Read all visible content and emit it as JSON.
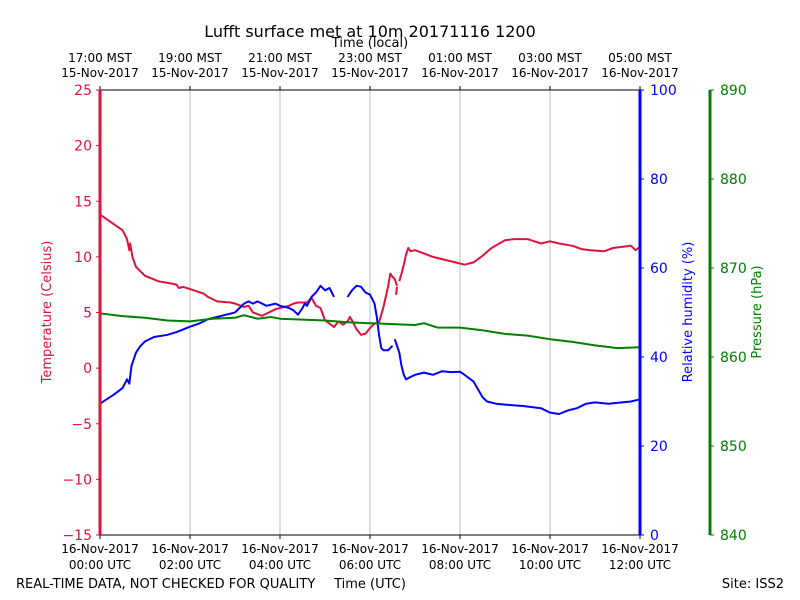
{
  "chart_data": {
    "type": "line",
    "title": "Lufft surface met at 10m 20171116 1200",
    "top_xlabel": "Time (local)",
    "xlabel": "Time (UTC)",
    "xlim": [
      0,
      12
    ],
    "x_ticks": [
      {
        "x": 0,
        "utc_date": "16-Nov-2017",
        "utc_time": "00:00 UTC",
        "local_time": "17:00 MST",
        "local_date": "15-Nov-2017"
      },
      {
        "x": 2,
        "utc_date": "16-Nov-2017",
        "utc_time": "02:00 UTC",
        "local_time": "19:00 MST",
        "local_date": "15-Nov-2017"
      },
      {
        "x": 4,
        "utc_date": "16-Nov-2017",
        "utc_time": "04:00 UTC",
        "local_time": "21:00 MST",
        "local_date": "15-Nov-2017"
      },
      {
        "x": 6,
        "utc_date": "16-Nov-2017",
        "utc_time": "06:00 UTC",
        "local_time": "23:00 MST",
        "local_date": "15-Nov-2017"
      },
      {
        "x": 8,
        "utc_date": "16-Nov-2017",
        "utc_time": "08:00 UTC",
        "local_time": "01:00 MST",
        "local_date": "16-Nov-2017"
      },
      {
        "x": 10,
        "utc_date": "16-Nov-2017",
        "utc_time": "10:00 UTC",
        "local_time": "03:00 MST",
        "local_date": "16-Nov-2017"
      },
      {
        "x": 12,
        "utc_date": "16-Nov-2017",
        "utc_time": "12:00 UTC",
        "local_time": "05:00 MST",
        "local_date": "16-Nov-2017"
      }
    ],
    "axes": {
      "temperature": {
        "label": "Temperature (Celsius)",
        "range": [
          -15,
          25
        ],
        "ticks": [
          25,
          20,
          15,
          10,
          5,
          0,
          -5,
          -10,
          -15
        ],
        "tick_labels": [
          "25",
          "20",
          "15",
          "10",
          "5",
          "0",
          "−5",
          "−10",
          "−15"
        ],
        "color": "#dc143c"
      },
      "humidity": {
        "label": "Relative humidity (%)",
        "range": [
          0,
          100
        ],
        "ticks": [
          0,
          20,
          40,
          60,
          80,
          100
        ],
        "tick_labels": [
          "0",
          "20",
          "40",
          "60",
          "80",
          "100"
        ],
        "color": "#0000ff"
      },
      "pressure": {
        "label": "Pressure (hPa)",
        "range": [
          840,
          890
        ],
        "ticks": [
          840,
          850,
          860,
          870,
          880,
          890
        ],
        "tick_labels": [
          "840",
          "850",
          "860",
          "870",
          "880",
          "890"
        ],
        "color": "#008000"
      }
    },
    "series": [
      {
        "name": "Temperature",
        "axis": "temperature",
        "color": "#dc143c",
        "segments": [
          [
            [
              0,
              13.8
            ],
            [
              0.25,
              13.1
            ],
            [
              0.5,
              12.4
            ],
            [
              0.6,
              11.6
            ],
            [
              0.65,
              10.6
            ],
            [
              0.67,
              11.2
            ],
            [
              0.72,
              10.0
            ],
            [
              0.8,
              9.1
            ],
            [
              1.0,
              8.3
            ],
            [
              1.3,
              7.8
            ],
            [
              1.6,
              7.6
            ],
            [
              1.7,
              7.5
            ],
            [
              1.75,
              7.2
            ],
            [
              1.85,
              7.3
            ],
            [
              2.0,
              7.1
            ],
            [
              2.3,
              6.7
            ],
            [
              2.4,
              6.4
            ],
            [
              2.6,
              6.0
            ],
            [
              2.9,
              5.9
            ],
            [
              3.0,
              5.8
            ],
            [
              3.2,
              5.5
            ],
            [
              3.3,
              5.6
            ],
            [
              3.4,
              5.0
            ],
            [
              3.6,
              4.7
            ],
            [
              3.7,
              4.9
            ],
            [
              3.9,
              5.3
            ],
            [
              4.1,
              5.5
            ],
            [
              4.2,
              5.6
            ],
            [
              4.3,
              5.8
            ],
            [
              4.4,
              5.9
            ],
            [
              4.6,
              5.9
            ],
            [
              4.7,
              6.3
            ],
            [
              4.8,
              5.6
            ],
            [
              4.9,
              5.4
            ],
            [
              5.0,
              4.3
            ],
            [
              5.1,
              4.0
            ],
            [
              5.2,
              3.7
            ],
            [
              5.3,
              4.2
            ],
            [
              5.4,
              3.9
            ],
            [
              5.5,
              4.2
            ],
            [
              5.55,
              4.6
            ],
            [
              5.6,
              4.3
            ],
            [
              5.7,
              3.5
            ],
            [
              5.8,
              3.0
            ],
            [
              5.9,
              3.1
            ],
            [
              6.0,
              3.6
            ],
            [
              6.1,
              4.0
            ],
            [
              6.2,
              4.1
            ],
            [
              6.3,
              5.5
            ],
            [
              6.4,
              7.3
            ],
            [
              6.45,
              8.5
            ],
            [
              6.5,
              8.2
            ],
            [
              6.55,
              8.0
            ],
            [
              6.6,
              7.4
            ]
          ],
          [
            [
              6.58,
              6.6
            ],
            [
              6.6,
              7.3
            ]
          ],
          [
            [
              6.65,
              7.8
            ],
            [
              6.7,
              8.5
            ],
            [
              6.75,
              9.3
            ],
            [
              6.8,
              10.2
            ],
            [
              6.85,
              10.8
            ],
            [
              6.9,
              10.5
            ],
            [
              7.0,
              10.6
            ],
            [
              7.2,
              10.3
            ],
            [
              7.4,
              10.0
            ],
            [
              7.6,
              9.8
            ],
            [
              7.9,
              9.5
            ],
            [
              8.1,
              9.3
            ],
            [
              8.3,
              9.5
            ],
            [
              8.5,
              10.1
            ],
            [
              8.7,
              10.8
            ],
            [
              9.0,
              11.5
            ],
            [
              9.2,
              11.6
            ],
            [
              9.5,
              11.6
            ],
            [
              9.8,
              11.2
            ],
            [
              10.0,
              11.4
            ],
            [
              10.2,
              11.2
            ],
            [
              10.5,
              11.0
            ],
            [
              10.7,
              10.7
            ],
            [
              10.9,
              10.6
            ],
            [
              11.2,
              10.5
            ],
            [
              11.4,
              10.8
            ],
            [
              11.6,
              10.9
            ],
            [
              11.8,
              11.0
            ],
            [
              11.9,
              10.6
            ],
            [
              12.0,
              10.9
            ]
          ]
        ]
      },
      {
        "name": "Relative humidity",
        "axis": "humidity",
        "color": "#0000ff",
        "segments": [
          [
            [
              0,
              29.5
            ],
            [
              0.3,
              31.5
            ],
            [
              0.5,
              33.0
            ],
            [
              0.55,
              34.0
            ],
            [
              0.6,
              35.0
            ],
            [
              0.65,
              34.0
            ],
            [
              0.7,
              38.0
            ],
            [
              0.8,
              41.0
            ],
            [
              0.9,
              42.5
            ],
            [
              1.0,
              43.5
            ],
            [
              1.2,
              44.5
            ],
            [
              1.5,
              45.0
            ],
            [
              1.7,
              45.6
            ],
            [
              1.8,
              46.0
            ],
            [
              2.0,
              46.8
            ],
            [
              2.2,
              47.5
            ],
            [
              2.4,
              48.5
            ],
            [
              2.6,
              49.0
            ],
            [
              2.8,
              49.5
            ],
            [
              3.0,
              50.0
            ],
            [
              3.1,
              51.0
            ],
            [
              3.2,
              52.0
            ],
            [
              3.3,
              52.5
            ],
            [
              3.4,
              52.0
            ],
            [
              3.5,
              52.5
            ],
            [
              3.7,
              51.5
            ],
            [
              3.9,
              52.0
            ],
            [
              4.0,
              51.5
            ],
            [
              4.2,
              51.0
            ],
            [
              4.3,
              50.5
            ],
            [
              4.4,
              49.5
            ],
            [
              4.5,
              51.0
            ],
            [
              4.55,
              52.0
            ],
            [
              4.6,
              51.5
            ],
            [
              4.7,
              53.5
            ],
            [
              4.8,
              54.5
            ],
            [
              4.9,
              56.0
            ],
            [
              5.0,
              55.0
            ],
            [
              5.1,
              55.5
            ],
            [
              5.2,
              53.5
            ]
          ],
          [
            [
              5.5,
              53.5
            ],
            [
              5.6,
              55.0
            ],
            [
              5.7,
              56.0
            ],
            [
              5.8,
              55.8
            ],
            [
              5.9,
              54.5
            ],
            [
              6.0,
              54.0
            ],
            [
              6.05,
              53.0
            ],
            [
              6.1,
              52.0
            ],
            [
              6.15,
              49.0
            ],
            [
              6.2,
              45.0
            ],
            [
              6.25,
              42.0
            ],
            [
              6.3,
              41.5
            ],
            [
              6.4,
              41.5
            ],
            [
              6.5,
              42.5
            ]
          ],
          [
            [
              6.55,
              44.0
            ],
            [
              6.6,
              42.5
            ],
            [
              6.65,
              41.0
            ],
            [
              6.7,
              38.0
            ],
            [
              6.75,
              36.0
            ],
            [
              6.8,
              35.0
            ],
            [
              6.9,
              35.5
            ],
            [
              7.0,
              36.0
            ],
            [
              7.2,
              36.5
            ],
            [
              7.4,
              36.0
            ],
            [
              7.6,
              36.8
            ],
            [
              7.8,
              36.6
            ],
            [
              8.0,
              36.7
            ],
            [
              8.1,
              36.0
            ],
            [
              8.3,
              34.5
            ],
            [
              8.5,
              31.0
            ],
            [
              8.6,
              30.0
            ],
            [
              8.8,
              29.5
            ],
            [
              9.0,
              29.3
            ],
            [
              9.4,
              29.0
            ],
            [
              9.8,
              28.5
            ],
            [
              10.0,
              27.5
            ],
            [
              10.2,
              27.2
            ],
            [
              10.4,
              28.0
            ],
            [
              10.6,
              28.5
            ],
            [
              10.8,
              29.5
            ],
            [
              11.0,
              29.8
            ],
            [
              11.3,
              29.5
            ],
            [
              11.6,
              29.8
            ],
            [
              11.8,
              30.0
            ],
            [
              12.0,
              30.5
            ]
          ]
        ]
      },
      {
        "name": "Pressure",
        "axis": "pressure",
        "color": "#008000",
        "segments": [
          [
            [
              0,
              864.9
            ],
            [
              0.5,
              864.6
            ],
            [
              1.0,
              864.4
            ],
            [
              1.5,
              864.1
            ],
            [
              2.0,
              864.0
            ],
            [
              2.5,
              864.3
            ],
            [
              3.0,
              864.4
            ],
            [
              3.2,
              864.7
            ],
            [
              3.5,
              864.3
            ],
            [
              3.8,
              864.5
            ],
            [
              4.0,
              864.3
            ],
            [
              4.5,
              864.2
            ],
            [
              5.0,
              864.1
            ],
            [
              5.5,
              863.9
            ],
            [
              6.0,
              863.8
            ],
            [
              6.5,
              863.7
            ],
            [
              7.0,
              863.6
            ],
            [
              7.2,
              863.8
            ],
            [
              7.5,
              863.3
            ],
            [
              8.0,
              863.3
            ],
            [
              8.5,
              863.0
            ],
            [
              9.0,
              862.6
            ],
            [
              9.5,
              862.4
            ],
            [
              10.0,
              862.0
            ],
            [
              10.5,
              861.7
            ],
            [
              11.0,
              861.3
            ],
            [
              11.5,
              861.0
            ],
            [
              12.0,
              861.1
            ]
          ]
        ]
      }
    ]
  },
  "footer": {
    "left_note": "REAL-TIME DATA, NOT CHECKED FOR QUALITY",
    "site": "Site: ISS2"
  }
}
